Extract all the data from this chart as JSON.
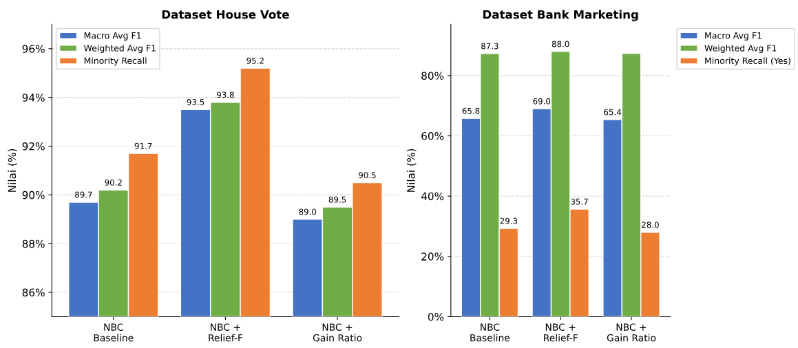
{
  "chart_data": [
    {
      "type": "bar",
      "title": "Dataset House Vote",
      "ylabel": "Nilai (%)",
      "categories": [
        "NBC\nBaseline",
        "NBC +\nRelief-F",
        "NBC +\nGain Ratio"
      ],
      "series": [
        {
          "name": "Macro Avg F1",
          "color": "#4472c4",
          "values": [
            89.7,
            93.5,
            89.0
          ],
          "value_labels": [
            "89.7",
            "93.5",
            "89.0"
          ]
        },
        {
          "name": "Weighted Avg F1",
          "color": "#70ad47",
          "values": [
            90.2,
            93.8,
            89.5
          ],
          "value_labels": [
            "90.2",
            "93.8",
            "89.5"
          ]
        },
        {
          "name": "Minority Recall",
          "color": "#ed7d31",
          "values": [
            91.7,
            95.2,
            90.5
          ],
          "value_labels": [
            "91.7",
            "95.2",
            "90.5"
          ]
        }
      ],
      "ylim": [
        85,
        97
      ],
      "yticks": [
        {
          "value": 86,
          "label": "86%"
        },
        {
          "value": 88,
          "label": "88%"
        },
        {
          "value": 90,
          "label": "90%"
        },
        {
          "value": 92,
          "label": "92%"
        },
        {
          "value": 94,
          "label": "94%"
        },
        {
          "value": 96,
          "label": "96%"
        }
      ],
      "grid": "y",
      "legend": "top left"
    },
    {
      "type": "bar",
      "title": "Dataset Bank Marketing",
      "ylabel": "Nilai (%)",
      "categories": [
        "NBC\nBaseline",
        "NBC +\nRelief-F",
        "NBC +\nGain Ratio"
      ],
      "series": [
        {
          "name": "Macro Avg F1",
          "color": "#4472c4",
          "values": [
            65.8,
            69.0,
            65.4
          ],
          "value_labels": [
            "65.8",
            "69.0",
            "65.4"
          ]
        },
        {
          "name": "Weighted Avg F1",
          "color": "#70ad47",
          "values": [
            87.3,
            88.0,
            87.4
          ],
          "value_labels": [
            "87.3",
            "88.0",
            null
          ]
        },
        {
          "name": "Minority Recall (Yes)",
          "color": "#ed7d31",
          "values": [
            29.3,
            35.7,
            28.0
          ],
          "value_labels": [
            "29.3",
            "35.7",
            "28.0"
          ]
        }
      ],
      "ylim": [
        0,
        97
      ],
      "yticks": [
        {
          "value": 0,
          "label": "0%"
        },
        {
          "value": 20,
          "label": "20%"
        },
        {
          "value": 40,
          "label": "40%"
        },
        {
          "value": 60,
          "label": "60%"
        },
        {
          "value": 80,
          "label": "80%"
        }
      ],
      "grid": "y",
      "legend": "right"
    }
  ]
}
